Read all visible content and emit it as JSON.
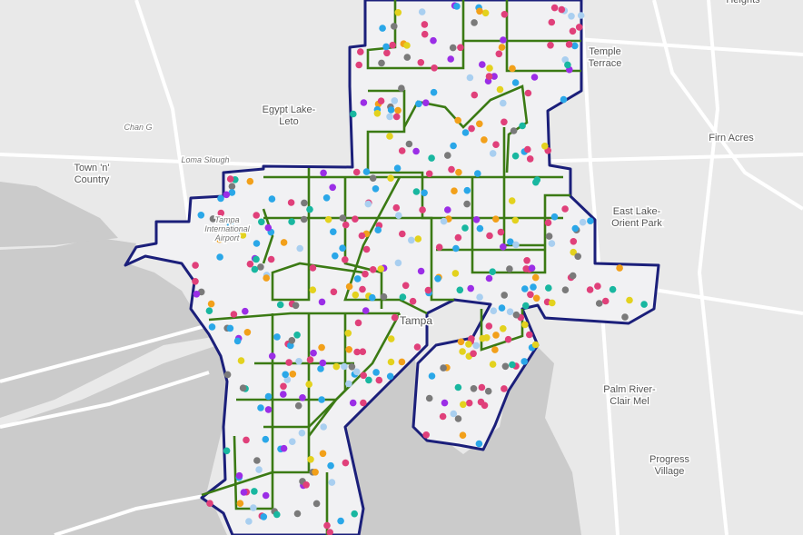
{
  "labels": [
    {
      "lines": [
        "Heights"
      ]
    },
    {
      "lines": [
        "Temple",
        "Terrace"
      ]
    },
    {
      "lines": [
        "Egypt Lake-",
        "Leto"
      ]
    },
    {
      "lines": [
        "Chan G"
      ]
    },
    {
      "lines": [
        "Town 'n'",
        "Country"
      ]
    },
    {
      "lines": [
        "Loma Slough"
      ]
    },
    {
      "lines": [
        "Tampa",
        "International",
        "Airport"
      ]
    },
    {
      "lines": [
        "Firn Acres"
      ]
    },
    {
      "lines": [
        "East Lake-",
        "Orient Park"
      ]
    },
    {
      "lines": [
        "Tampa"
      ]
    },
    {
      "lines": [
        "Palm River-",
        "Clair Mel"
      ]
    },
    {
      "lines": [
        "Progress",
        "Village"
      ]
    }
  ]
}
